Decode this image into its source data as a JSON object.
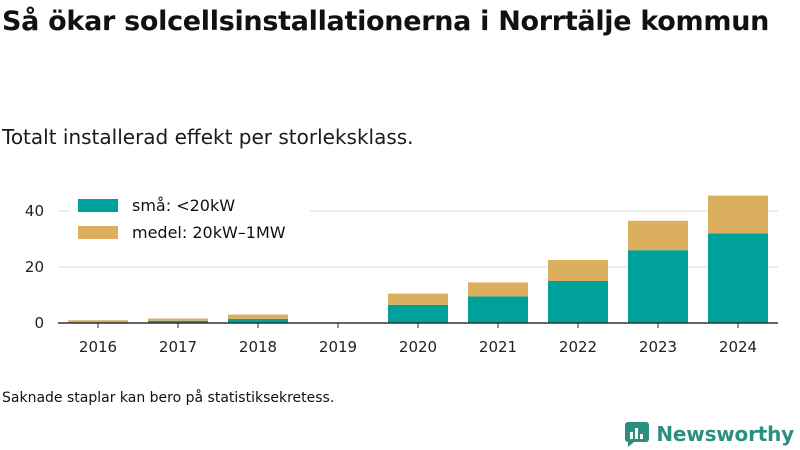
{
  "title": "Så ökar solcellsinstallationerna i Norrtälje kommun",
  "subtitle": "Totalt installerad effekt per storleksklass.",
  "footnote": "Saknade staplar kan bero på statistiksekretess.",
  "brand": {
    "name": "Newsworthy",
    "icon": "newsworthy-logo-icon",
    "color": "#2b8f7e"
  },
  "chart_data": {
    "type": "bar",
    "stacked": true,
    "categories": [
      "2016",
      "2017",
      "2018",
      "2019",
      "2020",
      "2021",
      "2022",
      "2023",
      "2024"
    ],
    "series": [
      {
        "name": "små: <20kW",
        "color": "#00a19a",
        "values": [
          0.3,
          0.8,
          1.5,
          0,
          6.5,
          9.5,
          15,
          26,
          32
        ]
      },
      {
        "name": "medel: 20kW–1MW",
        "color": "#dbaf5e",
        "values": [
          0.7,
          0.8,
          1.5,
          0,
          4,
          5,
          7.5,
          10.5,
          13.5
        ]
      }
    ],
    "yticks": [
      0,
      20,
      40
    ],
    "ylim": [
      0,
      48
    ],
    "grid": true,
    "legend": "top-left"
  }
}
